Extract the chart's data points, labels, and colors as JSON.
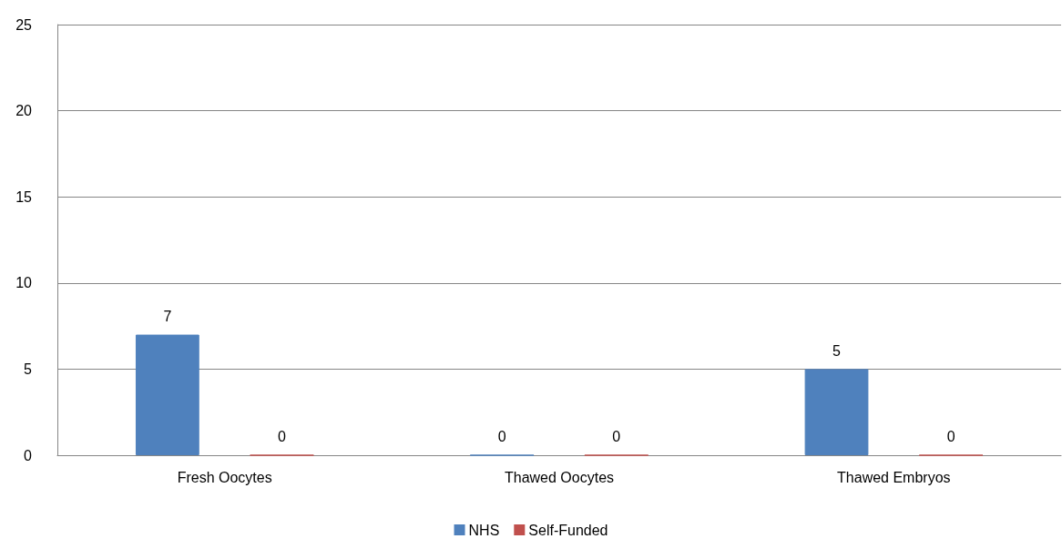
{
  "chart_data": {
    "type": "bar",
    "categories": [
      "Fresh Oocytes",
      "Thawed Oocytes",
      "Thawed Embryos"
    ],
    "series": [
      {
        "name": "NHS",
        "color": "#4f81bd",
        "values": [
          7,
          0,
          5
        ]
      },
      {
        "name": "Self-Funded",
        "color": "#c0504d",
        "values": [
          0,
          0,
          0
        ]
      }
    ],
    "ylim": [
      0,
      25
    ],
    "yticks": [
      0,
      5,
      10,
      15,
      20,
      25
    ],
    "grid": "y",
    "legend": "bottom",
    "data_labels": true
  }
}
